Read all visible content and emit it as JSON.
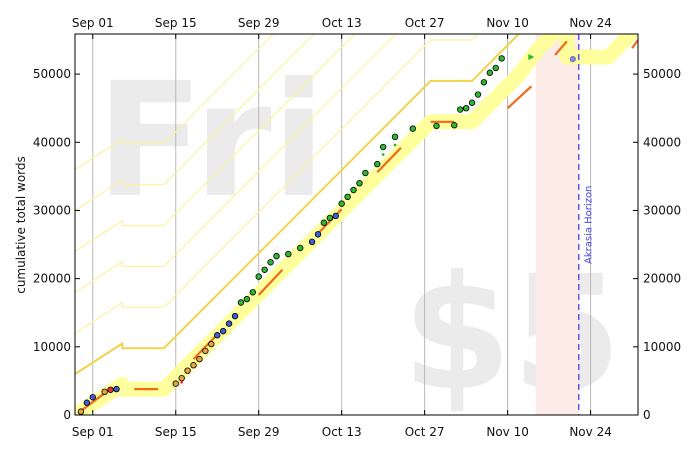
{
  "chart_data": {
    "type": "scatter",
    "ylabel": "cumulative total words",
    "ylim": [
      0,
      55000
    ],
    "xlim": [
      "2014-08-29",
      "2014-12-02"
    ],
    "x_ticks": [
      {
        "date": "2014-09-01",
        "label": "Sep 01"
      },
      {
        "date": "2014-09-15",
        "label": "Sep 15"
      },
      {
        "date": "2014-09-29",
        "label": "Sep 29"
      },
      {
        "date": "2014-10-13",
        "label": "Oct 13"
      },
      {
        "date": "2014-10-27",
        "label": "Oct 27"
      },
      {
        "date": "2014-11-10",
        "label": "Nov 10"
      },
      {
        "date": "2014-11-24",
        "label": "Nov 24"
      }
    ],
    "y_ticks": [
      0,
      10000,
      20000,
      30000,
      40000,
      50000
    ],
    "y_tick_labels": [
      "0",
      "10000",
      "20000",
      "30000",
      "40000",
      "50000"
    ],
    "grid": "vertical",
    "watermarks": {
      "top_left": "Fri",
      "bottom_right": "$5"
    },
    "akrasia_horizon": {
      "date": "2014-11-22",
      "label": "Akrasia Horizon"
    },
    "road": [
      {
        "date": "2014-08-29",
        "value": 0
      },
      {
        "date": "2014-09-06",
        "value": 4500
      },
      {
        "date": "2014-09-06",
        "value": 3800
      },
      {
        "date": "2014-09-13",
        "value": 3800
      },
      {
        "date": "2014-10-28",
        "value": 43000
      },
      {
        "date": "2014-11-04",
        "value": 43000
      },
      {
        "date": "2014-11-12",
        "value": 50000
      },
      {
        "date": "2014-11-15",
        "value": 53500
      },
      {
        "date": "2014-11-20",
        "value": 58000
      },
      {
        "date": "2014-11-20",
        "value": 52500
      },
      {
        "date": "2014-11-27",
        "value": 52500
      },
      {
        "date": "2014-12-02",
        "value": 57000
      }
    ],
    "road_offsets": [
      6000,
      12000,
      18000,
      24000,
      30000,
      36000
    ],
    "road_dashes": [
      {
        "from": {
          "date": "2014-08-30",
          "value": 600
        },
        "to": {
          "date": "2014-09-03",
          "value": 3200
        }
      },
      {
        "from": {
          "date": "2014-09-08",
          "value": 3800
        },
        "to": {
          "date": "2014-09-12",
          "value": 3800
        }
      },
      {
        "from": {
          "date": "2014-09-18",
          "value": 8200
        },
        "to": {
          "date": "2014-09-22",
          "value": 11800
        }
      },
      {
        "from": {
          "date": "2014-09-29",
          "value": 17600
        },
        "to": {
          "date": "2014-10-03",
          "value": 21300
        }
      },
      {
        "from": {
          "date": "2014-10-09",
          "value": 26600
        },
        "to": {
          "date": "2014-10-13",
          "value": 30200
        }
      },
      {
        "from": {
          "date": "2014-10-19",
          "value": 35600
        },
        "to": {
          "date": "2014-10-23",
          "value": 39200
        }
      },
      {
        "from": {
          "date": "2014-10-28",
          "value": 43000
        },
        "to": {
          "date": "2014-11-01",
          "value": 43000
        }
      },
      {
        "from": {
          "date": "2014-11-10",
          "value": 45000
        },
        "to": {
          "date": "2014-11-14",
          "value": 48200
        }
      },
      {
        "from": {
          "date": "2014-11-18",
          "value": 52800
        },
        "to": {
          "date": "2014-11-20",
          "value": 54800
        }
      },
      {
        "from": {
          "date": "2014-12-01",
          "value": 53800
        },
        "to": {
          "date": "2014-12-02",
          "value": 55000
        }
      }
    ],
    "datapoints": [
      {
        "date": "2014-08-30",
        "value": 500,
        "color": "#e8a33a"
      },
      {
        "date": "2014-08-31",
        "value": 1800,
        "color": "#3b5fd9"
      },
      {
        "date": "2014-09-01",
        "value": 2600,
        "color": "#3b5fd9"
      },
      {
        "date": "2014-09-03",
        "value": 3400,
        "color": "#e8a33a"
      },
      {
        "date": "2014-09-04",
        "value": 3700,
        "color": "#e83333"
      },
      {
        "date": "2014-09-05",
        "value": 3800,
        "color": "#3b5fd9"
      },
      {
        "date": "2014-09-15",
        "value": 4600,
        "color": "#e8a33a"
      },
      {
        "date": "2014-09-16",
        "value": 5400,
        "color": "#e8a33a"
      },
      {
        "date": "2014-09-17",
        "value": 6500,
        "color": "#e8a33a"
      },
      {
        "date": "2014-09-18",
        "value": 7300,
        "color": "#e8a33a"
      },
      {
        "date": "2014-09-19",
        "value": 8200,
        "color": "#e8a33a"
      },
      {
        "date": "2014-09-20",
        "value": 9400,
        "color": "#e8a33a"
      },
      {
        "date": "2014-09-21",
        "value": 10400,
        "color": "#e8a33a"
      },
      {
        "date": "2014-09-22",
        "value": 11700,
        "color": "#3b5fd9"
      },
      {
        "date": "2014-09-23",
        "value": 12300,
        "color": "#3b5fd9"
      },
      {
        "date": "2014-09-24",
        "value": 13400,
        "color": "#3b5fd9"
      },
      {
        "date": "2014-09-25",
        "value": 14500,
        "color": "#3b5fd9"
      },
      {
        "date": "2014-09-26",
        "value": 16500,
        "color": "#2eb82e"
      },
      {
        "date": "2014-09-27",
        "value": 17000,
        "color": "#2eb82e"
      },
      {
        "date": "2014-09-28",
        "value": 18000,
        "color": "#2eb82e"
      },
      {
        "date": "2014-09-29",
        "value": 20300,
        "color": "#2eb82e"
      },
      {
        "date": "2014-09-30",
        "value": 21300,
        "color": "#2eb82e"
      },
      {
        "date": "2014-10-01",
        "value": 22400,
        "color": "#2eb82e"
      },
      {
        "date": "2014-10-02",
        "value": 23300,
        "color": "#2eb82e"
      },
      {
        "date": "2014-10-04",
        "value": 23600,
        "color": "#2eb82e"
      },
      {
        "date": "2014-10-06",
        "value": 24500,
        "color": "#2eb82e"
      },
      {
        "date": "2014-10-08",
        "value": 25400,
        "color": "#3b5fd9"
      },
      {
        "date": "2014-10-09",
        "value": 26500,
        "color": "#3b5fd9"
      },
      {
        "date": "2014-10-10",
        "value": 28200,
        "color": "#2eb82e"
      },
      {
        "date": "2014-10-11",
        "value": 28900,
        "color": "#2eb82e"
      },
      {
        "date": "2014-10-12",
        "value": 29200,
        "color": "#3b5fd9"
      },
      {
        "date": "2014-10-13",
        "value": 31000,
        "color": "#2eb82e"
      },
      {
        "date": "2014-10-14",
        "value": 32000,
        "color": "#2eb82e"
      },
      {
        "date": "2014-10-15",
        "value": 33000,
        "color": "#2eb82e"
      },
      {
        "date": "2014-10-16",
        "value": 34000,
        "color": "#2eb82e"
      },
      {
        "date": "2014-10-17",
        "value": 35500,
        "color": "#2eb82e"
      },
      {
        "date": "2014-10-19",
        "value": 36800,
        "color": "#2eb82e"
      },
      {
        "date": "2014-10-20",
        "value": 39300,
        "color": "#2eb82e"
      },
      {
        "date": "2014-10-22",
        "value": 40800,
        "color": "#2eb82e"
      },
      {
        "date": "2014-10-25",
        "value": 42000,
        "color": "#2eb82e"
      },
      {
        "date": "2014-10-29",
        "value": 42400,
        "color": "#2eb82e"
      },
      {
        "date": "2014-11-01",
        "value": 42500,
        "color": "#2eb82e"
      },
      {
        "date": "2014-11-02",
        "value": 44800,
        "color": "#2eb82e"
      },
      {
        "date": "2014-11-03",
        "value": 45000,
        "color": "#2eb82e"
      },
      {
        "date": "2014-11-04",
        "value": 45800,
        "color": "#2eb82e"
      },
      {
        "date": "2014-11-05",
        "value": 47000,
        "color": "#2eb82e"
      },
      {
        "date": "2014-11-06",
        "value": 48800,
        "color": "#2eb82e"
      },
      {
        "date": "2014-11-07",
        "value": 50200,
        "color": "#2eb82e"
      },
      {
        "date": "2014-11-08",
        "value": 50900,
        "color": "#2eb82e"
      },
      {
        "date": "2014-11-09",
        "value": 52300,
        "color": "#2eb82e"
      }
    ],
    "small_markers": [
      {
        "date": "2014-09-16",
        "value": 4800,
        "color": "#e83333"
      },
      {
        "date": "2014-10-20",
        "value": 38200,
        "color": "#2eb82e"
      },
      {
        "date": "2014-10-22",
        "value": 39600,
        "color": "#2eb82e"
      }
    ],
    "projection_point": {
      "date": "2014-11-21",
      "value": 52200,
      "color": "#8888dd"
    },
    "flag_marker": {
      "date": "2014-11-14",
      "value": 52500,
      "color": "#2eb82e"
    }
  }
}
